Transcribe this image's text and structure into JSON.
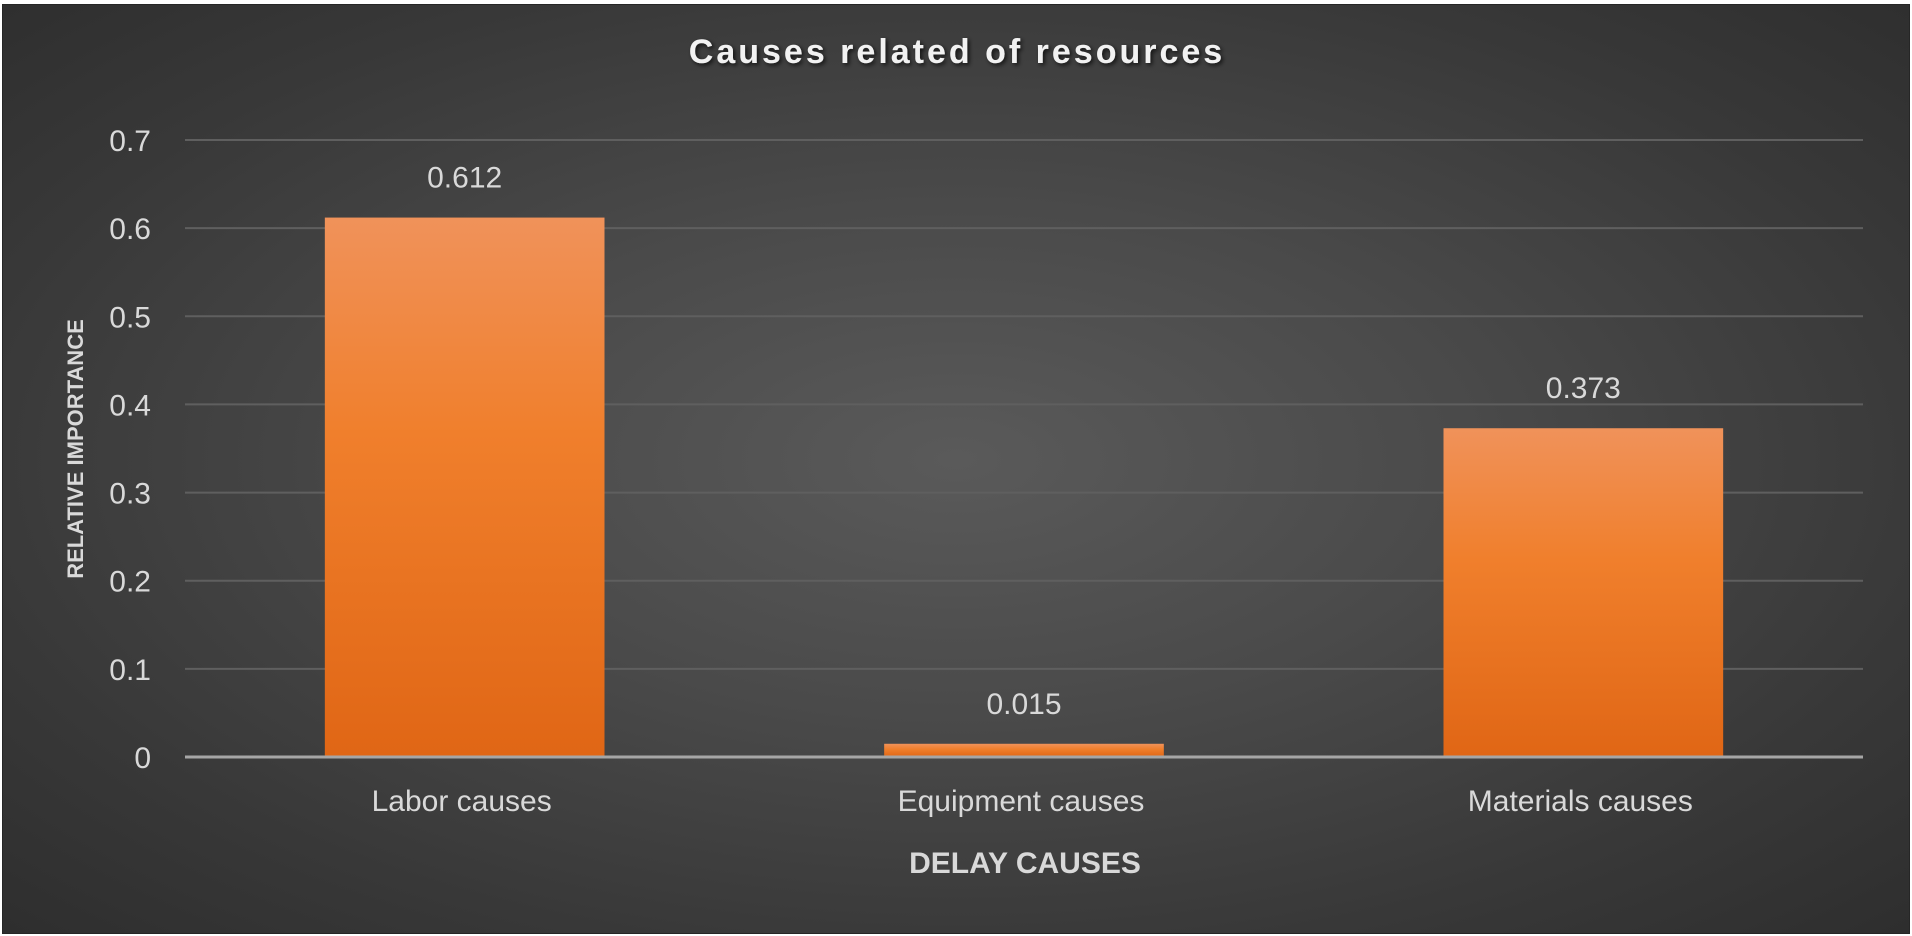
{
  "chart_data": {
    "type": "bar",
    "title": "Causes related of resources",
    "xlabel": "DELAY CAUSES",
    "ylabel": "RELATIVE IMPORTANCE",
    "categories": [
      "Labor causes",
      "Equipment causes",
      "Materials causes"
    ],
    "values": [
      0.612,
      0.015,
      0.373
    ],
    "data_labels": [
      "0.612",
      "0.015",
      "0.373"
    ],
    "ylim": [
      0,
      0.7
    ],
    "yticks": [
      "0",
      "0.1",
      "0.2",
      "0.3",
      "0.4",
      "0.5",
      "0.6",
      "0.7"
    ],
    "grid": true,
    "legend": "none",
    "colors": {
      "bar_top": "#f0925a",
      "bar_mid": "#f07f2c",
      "bar_bottom": "#e06615",
      "gridline": "#5f5f5f",
      "baseline": "#a6a6a6",
      "background": "#404040"
    }
  }
}
